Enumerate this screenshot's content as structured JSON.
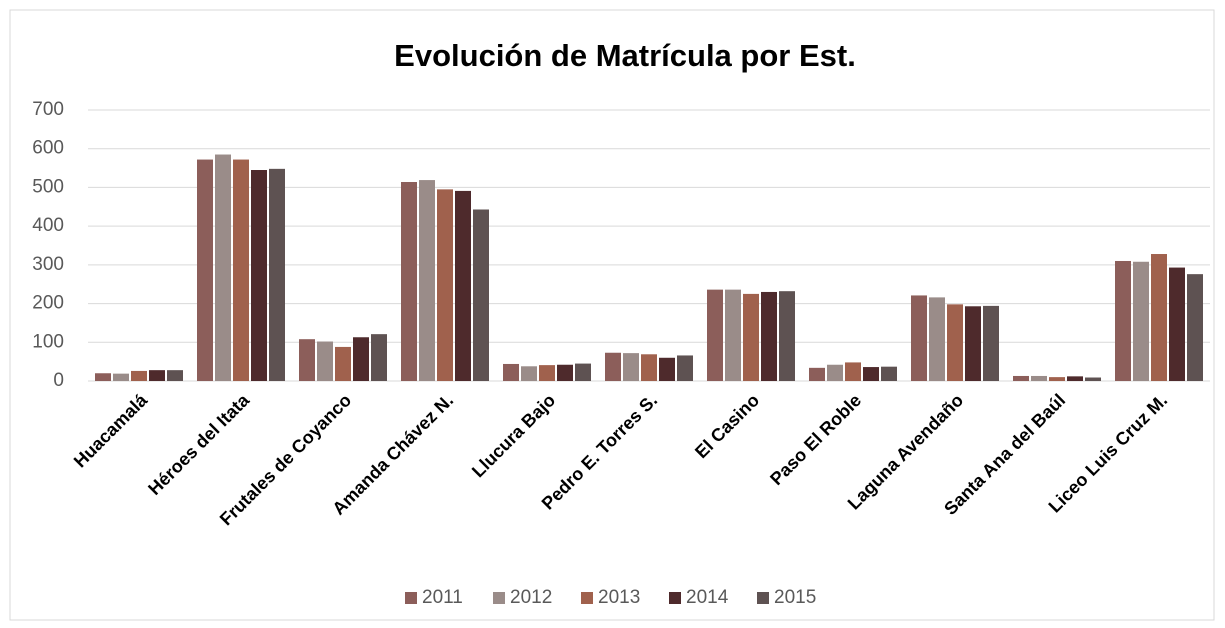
{
  "chart_data": {
    "type": "bar",
    "title": "Evolución de Matrícula por Est.",
    "categories": [
      "Huacamalá",
      "Héroes del Itata",
      "Frutales de Coyanco",
      "Amanda Chávez N.",
      "Llucura Bajo",
      "Pedro E. Torres S.",
      "El Casino",
      "Paso El Roble",
      "Laguna Avendaño",
      "Santa Ana del Baúl",
      "Liceo Luis Cruz M."
    ],
    "series": [
      {
        "name": "2011",
        "color": "#8c5e5a",
        "values": [
          20,
          572,
          108,
          514,
          44,
          73,
          236,
          34,
          221,
          13,
          310
        ]
      },
      {
        "name": "2012",
        "color": "#9a8c89",
        "values": [
          19,
          585,
          102,
          519,
          38,
          72,
          236,
          42,
          216,
          13,
          308
        ]
      },
      {
        "name": "2013",
        "color": "#a0614d",
        "values": [
          26,
          572,
          88,
          495,
          41,
          69,
          225,
          48,
          198,
          10,
          328
        ]
      },
      {
        "name": "2014",
        "color": "#4e2a2c",
        "values": [
          28,
          545,
          113,
          491,
          42,
          60,
          230,
          36,
          193,
          12,
          293
        ]
      },
      {
        "name": "2015",
        "color": "#5e5252",
        "values": [
          28,
          548,
          121,
          443,
          45,
          66,
          232,
          37,
          194,
          9,
          276
        ]
      }
    ],
    "ylim": [
      0,
      700
    ],
    "yticks": [
      0,
      100,
      200,
      300,
      400,
      500,
      600,
      700
    ],
    "grid": true,
    "legend": "bottom"
  }
}
